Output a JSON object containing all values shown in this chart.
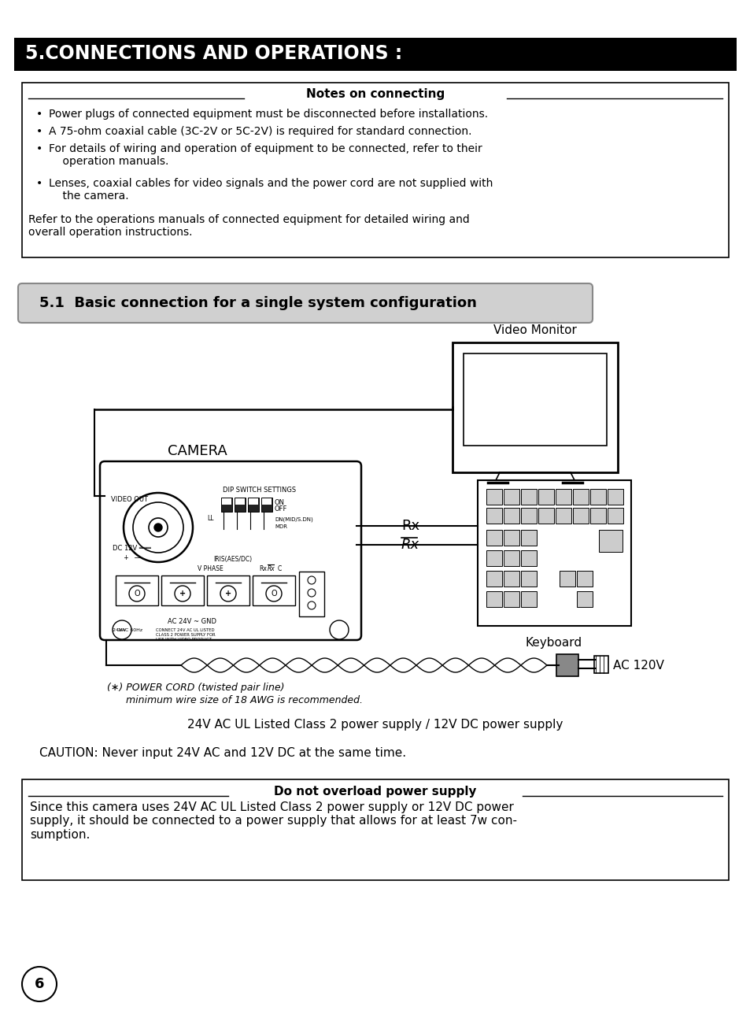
{
  "title": "5.CONNECTIONS AND OPERATIONS :",
  "title_bg": "#000000",
  "title_color": "#ffffff",
  "page_bg": "#ffffff",
  "notes_title": "Notes on connecting",
  "notes_extra": "Refer to the operations manuals of connected equipment for detailed wiring and\noverall operation instructions.",
  "section_title": "5.1  Basic connection for a single system configuration",
  "section_bg": "#d0d0d0",
  "caution_text": "CAUTION: Never input 24V AC and 12V DC at the same time.",
  "power_label": "24V AC UL Listed Class 2 power supply / 12V DC power supply",
  "overload_title": "Do not overload power supply",
  "overload_text": "Since this camera uses 24V AC UL Listed Class 2 power supply or 12V DC power\nsupply, it should be connected to a power supply that allows for at least 7w con-\nsumption.",
  "page_number": "6",
  "video_monitor_label": "Video Monitor",
  "camera_label": "CAMERA",
  "keyboard_label": "Keyboard",
  "rx_label1": "Rx",
  "rx_label2": "Rx",
  "ac_label": "AC 120V",
  "power_cord_label": "(∗) POWER CORD (twisted pair line)",
  "power_cord_label2": "minimum wire size of 18 AWG is recommended."
}
